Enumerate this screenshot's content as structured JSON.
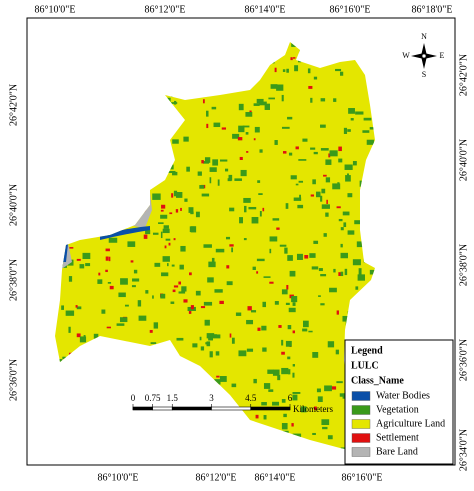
{
  "map": {
    "top_labels": [
      "86°10'0\"E",
      "86°12'0\"E",
      "86°14'0\"E",
      "86°16'0\"E",
      "86°18'0\"E"
    ],
    "bottom_labels": [
      "86°10'0\"E",
      "86°12'0\"E",
      "86°14'0\"E",
      "86°16'0\"E"
    ],
    "left_labels": [
      "26°42'0\"N",
      "26°40'0\"N",
      "26°38'0\"N",
      "26°36'0\"N"
    ],
    "right_labels": [
      "26°42'0\"N",
      "26°40'0\"N",
      "26°38'0\"N",
      "26°36'0\"N",
      "26°34'0\"N"
    ],
    "north_arrow": {
      "n": "N",
      "s": "S",
      "e": "E",
      "w": "W"
    },
    "scale_bar": {
      "ticks": [
        0,
        0.75,
        1.5,
        3,
        4.5,
        6
      ],
      "unit": "Kilometers"
    },
    "legend": {
      "title": "Legend",
      "layer": "LULC",
      "field": "Class_Name",
      "classes": [
        {
          "name": "Water Bodies",
          "color": "#0a4fa8"
        },
        {
          "name": "Vegetation",
          "color": "#3a9a1a"
        },
        {
          "name": "Agriculture Land",
          "color": "#e4e600"
        },
        {
          "name": "Settlement",
          "color": "#e01010"
        },
        {
          "name": "Bare Land",
          "color": "#b4b4b4"
        }
      ]
    }
  }
}
